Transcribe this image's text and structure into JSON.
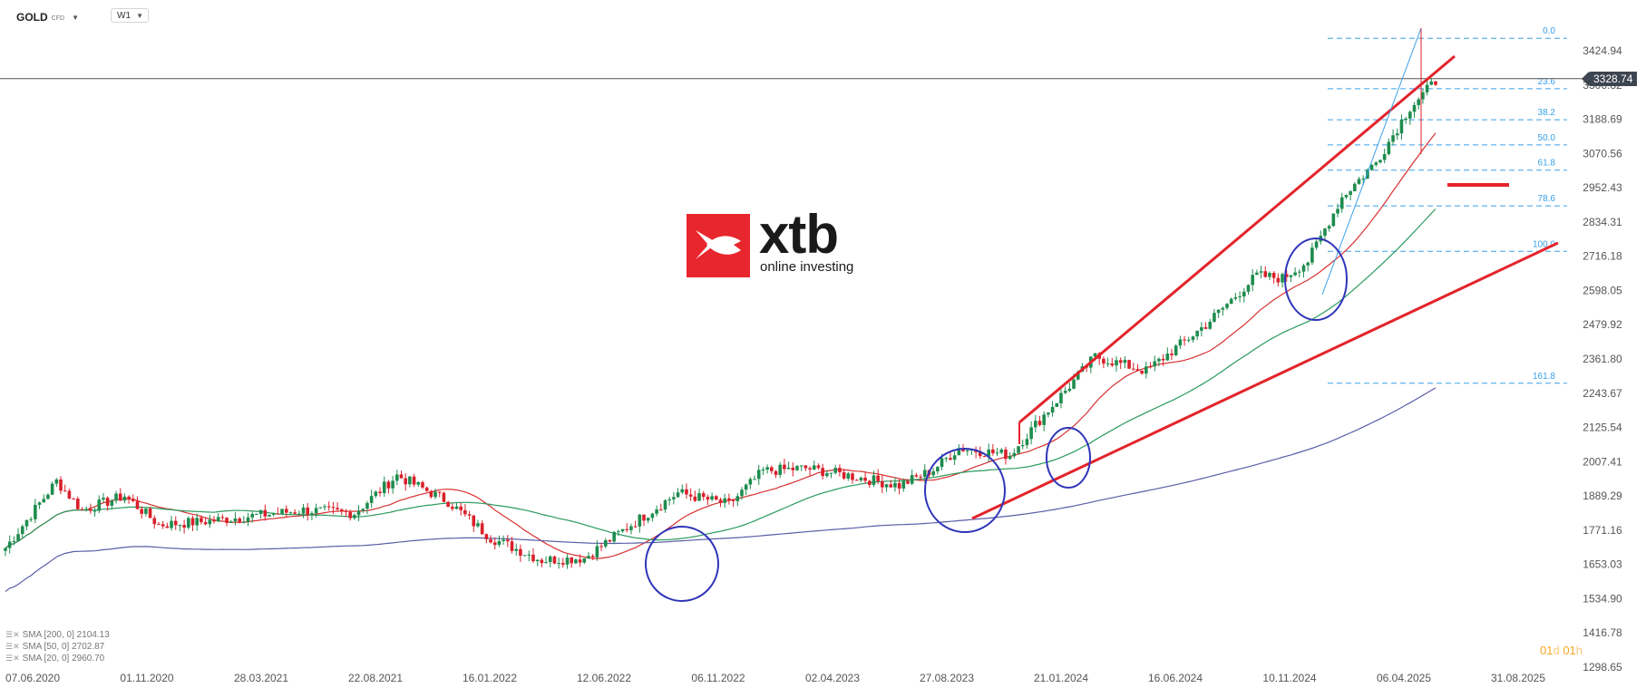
{
  "header": {
    "symbol": "GOLD",
    "symbol_type": "CFD",
    "timeframe": "W1"
  },
  "legend": [
    {
      "label": "SMA [200, 0]",
      "value": "2104.13"
    },
    {
      "label": "SMA [50, 0]",
      "value": "2702.87"
    },
    {
      "label": "SMA [20, 0]",
      "value": "2960.70"
    }
  ],
  "countdown": {
    "days": "01",
    "days_unit": "d",
    "hours": "01",
    "hours_unit": "h"
  },
  "logo": {
    "word": "xtb",
    "tagline": "online investing"
  },
  "chart_data": {
    "type": "candlestick",
    "current_price": 3328.74,
    "current_price_label": "3328.74",
    "y_axis_labels": [
      "3424.94",
      "3306.82",
      "3188.69",
      "3070.56",
      "2952.43",
      "2834.31",
      "2716.18",
      "2598.05",
      "2479.92",
      "2361.80",
      "2243.67",
      "2125.54",
      "2007.41",
      "1889.29",
      "1771.16",
      "1653.03",
      "1534.90",
      "1416.78",
      "1298.65"
    ],
    "x_axis_labels": [
      "07.06.2020",
      "01.11.2020",
      "28.03.2021",
      "22.08.2021",
      "16.01.2022",
      "12.06.2022",
      "06.11.2022",
      "02.04.2023",
      "27.08.2023",
      "21.01.2024",
      "16.06.2024",
      "10.11.2024",
      "06.04.2025",
      "31.08.2025"
    ],
    "fibonacci": [
      {
        "level": "0.0",
        "price": 3468
      },
      {
        "level": "23.6",
        "price": 3294
      },
      {
        "level": "38.2",
        "price": 3187
      },
      {
        "level": "50.0",
        "price": 3100
      },
      {
        "level": "61.8",
        "price": 3013
      },
      {
        "level": "78.6",
        "price": 2890
      },
      {
        "level": "100.0",
        "price": 2733
      },
      {
        "level": "161.8",
        "price": 2278
      }
    ],
    "up_color": "#1e8c4e",
    "down_color": "#d9202a",
    "sma_colors": {
      "sma20": "#d63030",
      "sma50": "#2a9a5e",
      "sma200": "#5a5ea8"
    },
    "annotation_color": "#e3242b",
    "circle_color": "#2f35b8",
    "fib_color": "#3aa0e8"
  }
}
